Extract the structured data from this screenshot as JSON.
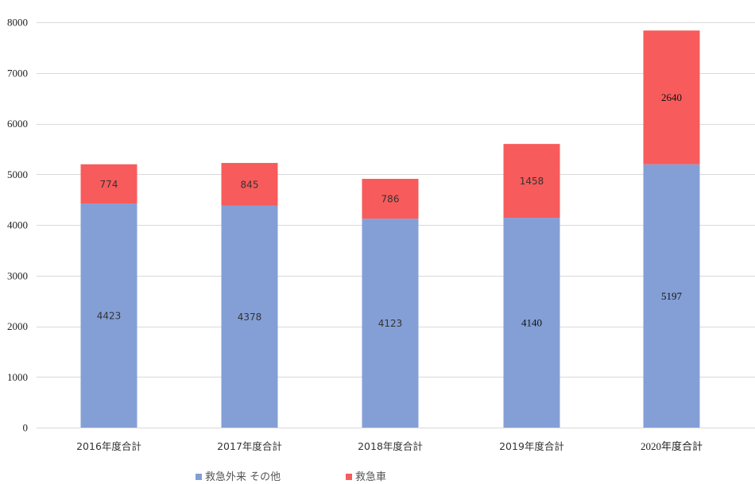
{
  "chart_data": {
    "type": "bar",
    "stacked": true,
    "categories": [
      "2016年度合計",
      "2017年度合計",
      "2018年度合計",
      "2019年度合計",
      "2020年度合計"
    ],
    "series": [
      {
        "name": "救急外来 その他",
        "color": "#849fd6",
        "values": [
          4423,
          4378,
          4123,
          4140,
          5197
        ]
      },
      {
        "name": "救急車",
        "color": "#f85b5b",
        "values": [
          774,
          845,
          786,
          1458,
          2640
        ]
      }
    ],
    "ylim": [
      0,
      8000
    ],
    "yticks": [
      0,
      1000,
      2000,
      3000,
      4000,
      5000,
      6000,
      7000,
      8000
    ],
    "grid": true,
    "legend_position": "bottom",
    "title": "",
    "xlabel": "",
    "ylabel": ""
  }
}
